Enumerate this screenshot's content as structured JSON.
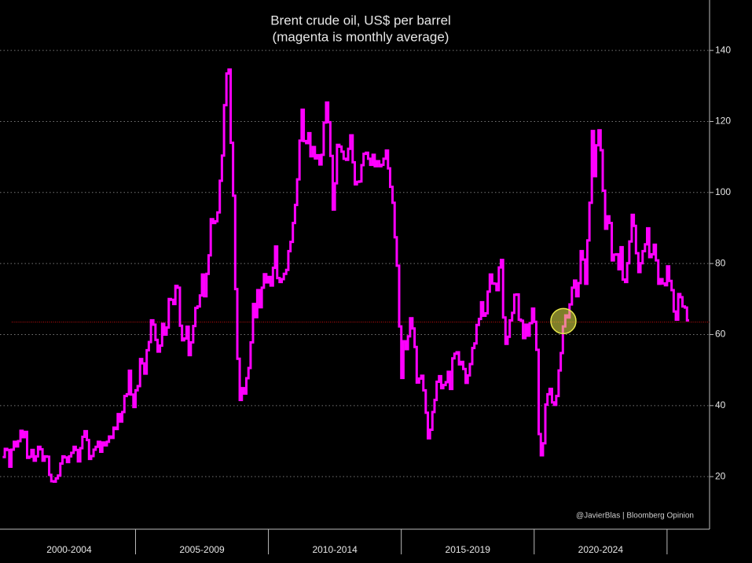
{
  "chart_data": {
    "type": "step-line",
    "title": "Brent crude oil, US$ per barrel",
    "subtitle": "(magenta is monthly average)",
    "annotation": "@JavierBlas | Bloomberg Opinion",
    "x_groups": [
      {
        "label": "2000-2004",
        "start": 2000,
        "end": 2005
      },
      {
        "label": "2005-2009",
        "start": 2005,
        "end": 2010
      },
      {
        "label": "2010-2014",
        "start": 2010,
        "end": 2015
      },
      {
        "label": "2015-2019",
        "start": 2015,
        "end": 2020
      },
      {
        "label": "2020-2024",
        "start": 2020,
        "end": 2025
      }
    ],
    "xlim": [
      1999.9,
      2026.6
    ],
    "ylim": [
      5.2,
      154.2
    ],
    "yticks": [
      20,
      40,
      60,
      80,
      100,
      120,
      140
    ],
    "grid": true,
    "reference_line": {
      "value": 63.5,
      "color": "#cc1111"
    },
    "highlight": {
      "x": 2021.1,
      "y": 63.8,
      "color": "#e8e84a"
    },
    "x": [
      2000.0,
      2000.08,
      2000.17,
      2000.25,
      2000.33,
      2000.42,
      2000.5,
      2000.58,
      2000.67,
      2000.75,
      2000.83,
      2000.92,
      2001.0,
      2001.08,
      2001.17,
      2001.25,
      2001.33,
      2001.42,
      2001.5,
      2001.58,
      2001.67,
      2001.75,
      2001.83,
      2001.92,
      2002.0,
      2002.08,
      2002.17,
      2002.25,
      2002.33,
      2002.42,
      2002.5,
      2002.58,
      2002.67,
      2002.75,
      2002.83,
      2002.92,
      2003.0,
      2003.08,
      2003.17,
      2003.25,
      2003.33,
      2003.42,
      2003.5,
      2003.58,
      2003.67,
      2003.75,
      2003.83,
      2003.92,
      2004.0,
      2004.08,
      2004.17,
      2004.25,
      2004.33,
      2004.42,
      2004.5,
      2004.58,
      2004.67,
      2004.75,
      2004.83,
      2004.92,
      2005.0,
      2005.08,
      2005.17,
      2005.25,
      2005.33,
      2005.42,
      2005.5,
      2005.58,
      2005.67,
      2005.75,
      2005.83,
      2005.92,
      2006.0,
      2006.08,
      2006.17,
      2006.25,
      2006.33,
      2006.42,
      2006.5,
      2006.58,
      2006.67,
      2006.75,
      2006.83,
      2006.92,
      2007.0,
      2007.08,
      2007.17,
      2007.25,
      2007.33,
      2007.42,
      2007.5,
      2007.58,
      2007.67,
      2007.75,
      2007.83,
      2007.92,
      2008.0,
      2008.08,
      2008.17,
      2008.25,
      2008.33,
      2008.42,
      2008.5,
      2008.58,
      2008.67,
      2008.75,
      2008.83,
      2008.92,
      2009.0,
      2009.08,
      2009.17,
      2009.25,
      2009.33,
      2009.42,
      2009.5,
      2009.58,
      2009.67,
      2009.75,
      2009.83,
      2009.92,
      2010.0,
      2010.08,
      2010.17,
      2010.25,
      2010.33,
      2010.42,
      2010.5,
      2010.58,
      2010.67,
      2010.75,
      2010.83,
      2010.92,
      2011.0,
      2011.08,
      2011.17,
      2011.25,
      2011.33,
      2011.42,
      2011.5,
      2011.58,
      2011.67,
      2011.75,
      2011.83,
      2011.92,
      2012.0,
      2012.08,
      2012.17,
      2012.25,
      2012.33,
      2012.42,
      2012.5,
      2012.58,
      2012.67,
      2012.75,
      2012.83,
      2012.92,
      2013.0,
      2013.08,
      2013.17,
      2013.25,
      2013.33,
      2013.42,
      2013.5,
      2013.58,
      2013.67,
      2013.75,
      2013.83,
      2013.92,
      2014.0,
      2014.08,
      2014.17,
      2014.25,
      2014.33,
      2014.42,
      2014.5,
      2014.58,
      2014.67,
      2014.75,
      2014.83,
      2014.92,
      2015.0,
      2015.08,
      2015.17,
      2015.25,
      2015.33,
      2015.42,
      2015.5,
      2015.58,
      2015.67,
      2015.75,
      2015.83,
      2015.92,
      2016.0,
      2016.08,
      2016.17,
      2016.25,
      2016.33,
      2016.42,
      2016.5,
      2016.58,
      2016.67,
      2016.75,
      2016.83,
      2016.92,
      2017.0,
      2017.08,
      2017.17,
      2017.25,
      2017.33,
      2017.42,
      2017.5,
      2017.58,
      2017.67,
      2017.75,
      2017.83,
      2017.92,
      2018.0,
      2018.08,
      2018.17,
      2018.25,
      2018.33,
      2018.42,
      2018.5,
      2018.58,
      2018.67,
      2018.75,
      2018.83,
      2018.92,
      2019.0,
      2019.08,
      2019.17,
      2019.25,
      2019.33,
      2019.42,
      2019.5,
      2019.58,
      2019.67,
      2019.75,
      2019.83,
      2019.92,
      2020.0,
      2020.08,
      2020.17,
      2020.25,
      2020.33,
      2020.42,
      2020.5,
      2020.58,
      2020.67,
      2020.75,
      2020.83,
      2020.92,
      2021.0,
      2021.08,
      2021.17,
      2021.25,
      2021.33,
      2021.42,
      2021.5,
      2021.58,
      2021.67,
      2021.75,
      2021.83,
      2021.92,
      2022.0,
      2022.08,
      2022.17,
      2022.25,
      2022.33,
      2022.42,
      2022.5,
      2022.58,
      2022.67,
      2022.75,
      2022.83,
      2022.92,
      2023.0,
      2023.08,
      2023.17,
      2023.25,
      2023.33,
      2023.42,
      2023.5,
      2023.58,
      2023.67,
      2023.75,
      2023.83,
      2023.92,
      2024.0,
      2024.08,
      2024.17,
      2024.25,
      2024.33,
      2024.42,
      2024.5,
      2024.58,
      2024.67,
      2024.75,
      2024.83,
      2024.92,
      2025.0,
      2025.08,
      2025.17,
      2025.25,
      2025.33,
      2025.42,
      2025.5,
      2025.58,
      2025.67,
      2025.75
    ],
    "series": [
      {
        "color": "#ff00ff",
        "values": [
          25.5,
          27.8,
          27.5,
          22.8,
          27.6,
          29.8,
          28.5,
          30.0,
          32.9,
          31.1,
          32.6,
          25.3,
          25.6,
          27.5,
          24.5,
          25.7,
          28.4,
          27.7,
          24.5,
          25.7,
          25.6,
          20.5,
          18.7,
          18.6,
          19.5,
          20.3,
          23.7,
          25.7,
          25.4,
          24.1,
          25.7,
          26.7,
          28.4,
          27.5,
          24.3,
          28.0,
          31.2,
          32.8,
          30.3,
          25.0,
          25.8,
          27.6,
          28.4,
          29.8,
          27.0,
          29.6,
          28.8,
          29.8,
          31.3,
          30.9,
          33.8,
          33.4,
          37.6,
          35.5,
          38.2,
          42.7,
          43.2,
          49.8,
          43.1,
          39.6,
          44.3,
          45.5,
          53.1,
          51.9,
          49.0,
          55.6,
          57.9,
          64.0,
          62.8,
          58.5,
          55.2,
          56.9,
          63.0,
          60.0,
          62.0,
          70.0,
          69.8,
          68.6,
          73.7,
          73.2,
          62.5,
          58.4,
          58.9,
          62.2,
          54.2,
          57.8,
          62.4,
          67.5,
          67.9,
          71.0,
          76.9,
          70.8,
          77.1,
          82.3,
          92.5,
          91.4,
          91.9,
          94.4,
          103.3,
          110.4,
          124.6,
          133.5,
          134.6,
          114.0,
          99.1,
          72.8,
          53.2,
          41.6,
          44.9,
          43.4,
          47.7,
          50.6,
          57.8,
          68.6,
          64.9,
          72.5,
          67.7,
          73.2,
          77.0,
          74.7,
          76.2,
          73.8,
          78.8,
          84.8,
          75.9,
          74.8,
          75.6,
          77.1,
          78.2,
          83.5,
          86.1,
          91.4,
          96.5,
          103.7,
          114.6,
          123.3,
          114.5,
          113.9,
          116.7,
          110.2,
          112.8,
          109.6,
          110.5,
          107.9,
          110.6,
          119.7,
          125.3,
          119.8,
          110.3,
          95.2,
          102.6,
          113.4,
          112.9,
          111.5,
          109.5,
          109.2,
          112.3,
          116.1,
          108.5,
          102.3,
          103.0,
          103.1,
          107.7,
          110.9,
          111.2,
          109.5,
          107.8,
          110.6,
          107.4,
          108.8,
          107.4,
          107.8,
          109.5,
          111.8,
          106.8,
          101.6,
          97.1,
          87.4,
          79.4,
          62.3,
          47.8,
          58.1,
          55.9,
          59.5,
          64.6,
          61.7,
          56.5,
          46.5,
          47.6,
          48.4,
          44.3,
          38.0,
          30.8,
          33.2,
          38.2,
          41.6,
          46.7,
          48.3,
          44.9,
          45.8,
          46.6,
          49.5,
          44.7,
          53.3,
          54.6,
          55.0,
          51.6,
          52.3,
          50.3,
          46.4,
          48.5,
          51.7,
          56.2,
          57.5,
          62.7,
          64.4,
          69.1,
          65.3,
          66.0,
          72.1,
          76.9,
          74.4,
          74.3,
          72.5,
          78.9,
          81.0,
          64.8,
          57.4,
          59.4,
          64.0,
          66.1,
          71.2,
          71.3,
          64.2,
          63.9,
          59.0,
          62.8,
          59.7,
          63.2,
          67.3,
          63.6,
          55.7,
          32.0,
          26.0,
          29.4,
          40.3,
          43.2,
          44.7,
          40.9,
          40.2,
          42.7,
          49.9,
          54.8,
          62.3,
          65.4,
          64.8,
          68.5,
          73.2,
          75.2,
          70.8,
          74.5,
          83.5,
          81.1,
          74.3,
          86.5,
          97.1,
          117.3,
          104.6,
          113.3,
          117.5,
          111.9,
          100.5,
          89.8,
          93.3,
          91.4,
          80.9,
          82.5,
          82.6,
          78.4,
          84.6,
          75.5,
          74.8,
          80.1,
          86.2,
          93.7,
          90.6,
          82.9,
          77.6,
          80.1,
          83.5,
          85.4,
          89.9,
          81.8,
          82.6,
          85.3,
          80.9,
          74.3,
          75.6,
          74.4,
          73.9,
          79.2,
          75.1,
          72.5,
          66.5,
          64.2,
          71.4,
          70.5,
          67.9,
          67.6,
          64.0
        ]
      }
    ]
  }
}
